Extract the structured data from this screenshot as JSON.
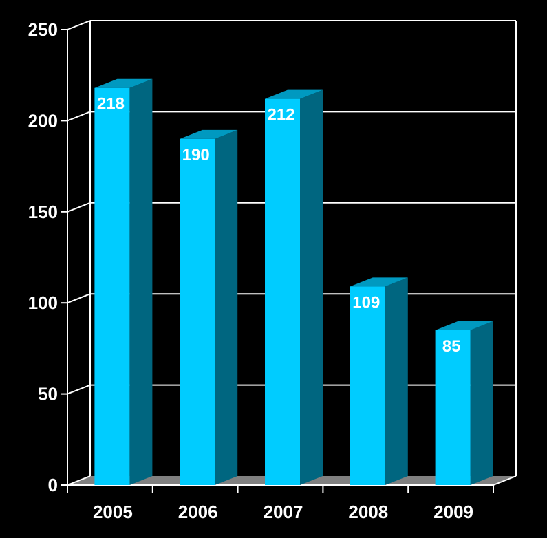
{
  "chart_data": {
    "type": "bar",
    "categories": [
      "2005",
      "2006",
      "2007",
      "2008",
      "2009"
    ],
    "values": [
      218,
      190,
      212,
      109,
      85
    ],
    "data_labels": [
      "218",
      "190",
      "212",
      "109",
      "85"
    ],
    "ylim": [
      0,
      250
    ],
    "yticks": [
      "0",
      "50",
      "100",
      "150",
      "200",
      "250"
    ],
    "title": "",
    "xlabel": "",
    "ylabel": "",
    "grid": true,
    "style": "3d-column",
    "colors": {
      "background": "#000000",
      "bar_front": "#00ccff",
      "bar_side": "#006680",
      "bar_top": "#0099c0",
      "grid": "#ffffff",
      "floor": "#808080",
      "text": "#ffffff"
    }
  }
}
